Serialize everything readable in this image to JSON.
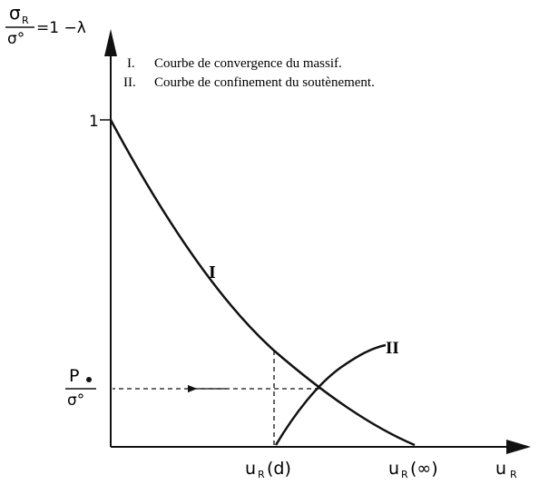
{
  "y_axis": {
    "label_numerator": "σ",
    "label_numerator_sub": "R",
    "label_denominator": "σ°",
    "label_rhs": "=1 −λ",
    "tick_label": "1"
  },
  "x_axis": {
    "label": "u",
    "label_sub": "R"
  },
  "legend": {
    "items": [
      {
        "numeral": "I.",
        "text": "Courbe de convergence du massif."
      },
      {
        "numeral": "II.",
        "text": "Courbe de confinement du soutènement."
      }
    ]
  },
  "curves": {
    "convergence_label": "I",
    "confinement_label": "II"
  },
  "markers": {
    "pressure_numerator": "P",
    "pressure_denominator": "σ°",
    "ud_label": "u",
    "ud_sub": "R",
    "ud_suffix": "(d)",
    "uinf_label": "u",
    "uinf_sub": "R",
    "uinf_suffix": "(∞)"
  },
  "colors": {
    "ink": "#111111",
    "background": "#ffffff"
  }
}
